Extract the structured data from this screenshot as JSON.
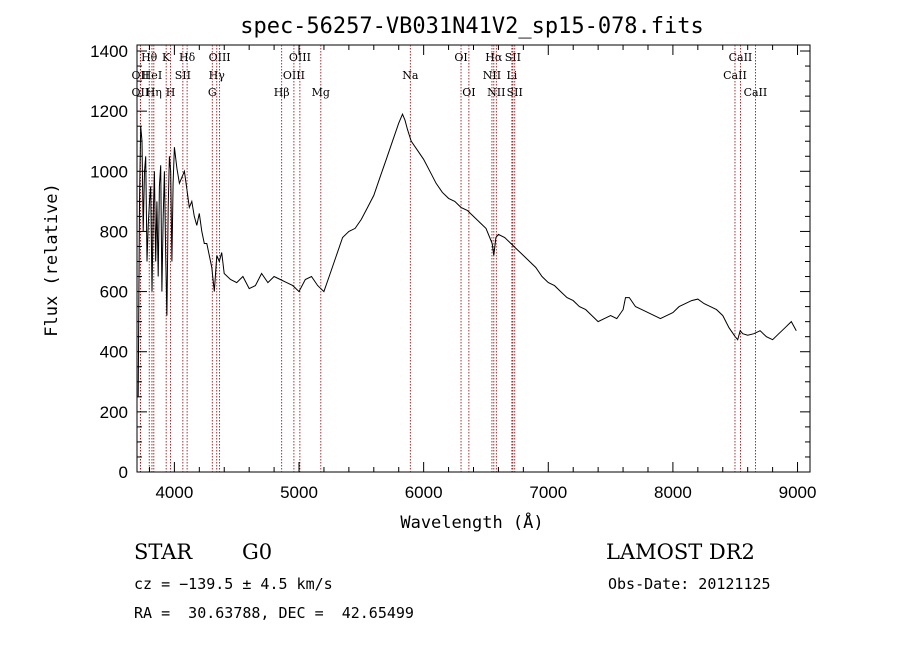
{
  "chart_data": {
    "type": "line",
    "title": "spec-56257-VB031N41V2_sp15-078.fits",
    "xlabel": "Wavelength (Å)",
    "ylabel": "Flux (relative)",
    "xlim": [
      3700,
      9100
    ],
    "ylim": [
      0,
      1420
    ],
    "xticks": [
      4000,
      5000,
      6000,
      7000,
      8000,
      9000
    ],
    "yticks": [
      0,
      200,
      400,
      600,
      800,
      1000,
      1200,
      1400
    ],
    "grid": false,
    "legend": "none",
    "series": [
      {
        "color": "#000000",
        "x": [
          3710,
          3720,
          3730,
          3740,
          3750,
          3760,
          3770,
          3780,
          3790,
          3800,
          3810,
          3820,
          3830,
          3840,
          3850,
          3860,
          3870,
          3880,
          3890,
          3900,
          3910,
          3920,
          3930,
          3940,
          3950,
          3960,
          3970,
          3980,
          3990,
          4000,
          4020,
          4040,
          4060,
          4080,
          4100,
          4120,
          4140,
          4160,
          4180,
          4200,
          4220,
          4240,
          4260,
          4280,
          4300,
          4320,
          4340,
          4360,
          4380,
          4400,
          4450,
          4500,
          4550,
          4600,
          4650,
          4700,
          4750,
          4800,
          4850,
          4900,
          4950,
          5000,
          5050,
          5100,
          5150,
          5200,
          5250,
          5300,
          5350,
          5400,
          5450,
          5500,
          5550,
          5600,
          5650,
          5700,
          5750,
          5800,
          5830,
          5850,
          5870,
          5900,
          5950,
          6000,
          6050,
          6100,
          6150,
          6200,
          6250,
          6300,
          6350,
          6400,
          6450,
          6500,
          6550,
          6563,
          6580,
          6600,
          6650,
          6700,
          6750,
          6800,
          6850,
          6900,
          6950,
          7000,
          7050,
          7100,
          7150,
          7200,
          7250,
          7300,
          7350,
          7400,
          7450,
          7500,
          7550,
          7600,
          7620,
          7650,
          7700,
          7750,
          7800,
          7850,
          7900,
          7950,
          8000,
          8050,
          8100,
          8150,
          8200,
          8250,
          8300,
          8350,
          8400,
          8450,
          8500,
          8520,
          8540,
          8560,
          8600,
          8650,
          8700,
          8750,
          8800,
          8850,
          8900,
          8950,
          8990
        ],
        "y": [
          250,
          900,
          1150,
          1100,
          800,
          1000,
          1050,
          700,
          820,
          900,
          950,
          600,
          850,
          1000,
          700,
          900,
          650,
          950,
          1020,
          600,
          850,
          1000,
          720,
          520,
          880,
          1050,
          1000,
          700,
          960,
          1080,
          1010,
          960,
          980,
          1000,
          940,
          880,
          900,
          850,
          820,
          860,
          800,
          760,
          760,
          720,
          680,
          600,
          720,
          700,
          730,
          660,
          640,
          630,
          650,
          610,
          620,
          660,
          630,
          650,
          640,
          630,
          620,
          600,
          640,
          650,
          620,
          600,
          660,
          720,
          780,
          800,
          810,
          840,
          880,
          920,
          980,
          1040,
          1100,
          1160,
          1190,
          1170,
          1140,
          1100,
          1070,
          1040,
          1000,
          960,
          930,
          910,
          900,
          880,
          870,
          850,
          830,
          810,
          760,
          720,
          780,
          790,
          780,
          760,
          740,
          720,
          700,
          680,
          650,
          630,
          620,
          600,
          580,
          570,
          550,
          540,
          520,
          500,
          510,
          520,
          510,
          540,
          580,
          580,
          550,
          540,
          530,
          520,
          510,
          520,
          530,
          550,
          560,
          570,
          575,
          560,
          550,
          540,
          520,
          480,
          450,
          440,
          470,
          460,
          455,
          460,
          470,
          450,
          440,
          460,
          480,
          500,
          470
        ]
      }
    ],
    "line_markers": [
      {
        "name": "Hθ",
        "wave": 3798,
        "color": "#8b0000",
        "row": 0
      },
      {
        "name": "OII",
        "wave": 3727,
        "color": "#8b0000",
        "row": 1
      },
      {
        "name": "OII",
        "wave": 3727,
        "color": "#8b0000",
        "row": 2
      },
      {
        "name": "HeI",
        "wave": 3820,
        "color": "#8b0000",
        "row": 1
      },
      {
        "name": "Hη",
        "wave": 3835,
        "color": "#8b0000",
        "row": 2
      },
      {
        "name": "K",
        "wave": 3934,
        "color": "#8b0000",
        "row": 0
      },
      {
        "name": "SII",
        "wave": 4068,
        "color": "#8b0000",
        "row": 1
      },
      {
        "name": "H",
        "wave": 3969,
        "color": "#8b0000",
        "row": 2
      },
      {
        "name": "Hδ",
        "wave": 4102,
        "color": "#8b0000",
        "row": 0
      },
      {
        "name": "OIII",
        "wave": 4363,
        "color": "#8b0000",
        "row": 0
      },
      {
        "name": "Hγ",
        "wave": 4340,
        "color": "#8b0000",
        "row": 1
      },
      {
        "name": "G",
        "wave": 4304,
        "color": "#8b0000",
        "row": 2
      },
      {
        "name": "OIII",
        "wave": 5007,
        "color": "#8b0000",
        "row": 0
      },
      {
        "name": "OIII",
        "wave": 4959,
        "color": "#8b0000",
        "row": 1
      },
      {
        "name": "Hβ",
        "wave": 4861,
        "color": "#8b0000",
        "row": 2
      },
      {
        "name": "Mg",
        "wave": 5175,
        "color": "#8b0000",
        "row": 2
      },
      {
        "name": "Na",
        "wave": 5893,
        "color": "#8b0000",
        "row": 1
      },
      {
        "name": "OI",
        "wave": 6300,
        "color": "#8b0000",
        "row": 0
      },
      {
        "name": "OI",
        "wave": 6363,
        "color": "#8b0000",
        "row": 2
      },
      {
        "name": "Hα",
        "wave": 6563,
        "color": "#8b0000",
        "row": 0
      },
      {
        "name": "SII",
        "wave": 6716,
        "color": "#8b0000",
        "row": 0
      },
      {
        "name": "NII",
        "wave": 6548,
        "color": "#8b0000",
        "row": 1
      },
      {
        "name": "Li",
        "wave": 6708,
        "color": "#8b0000",
        "row": 1
      },
      {
        "name": "NII",
        "wave": 6583,
        "color": "#8b0000",
        "row": 2
      },
      {
        "name": "SII",
        "wave": 6731,
        "color": "#8b0000",
        "row": 2
      },
      {
        "name": "CaII",
        "wave": 8542,
        "color": "#8b0000",
        "row": 0
      },
      {
        "name": "CaII",
        "wave": 8498,
        "color": "#8b0000",
        "row": 1
      },
      {
        "name": "CaII",
        "wave": 8662,
        "color": "#8b0000",
        "row": 2
      }
    ]
  },
  "footer": {
    "class_label": "STAR",
    "subclass": "G0",
    "survey": "LAMOST DR2",
    "cz": "cz = −139.5 ± 4.5 km/s",
    "obs_date": "Obs-Date: 20121125",
    "coords": "RA =  30.63788, DEC =  42.65499"
  }
}
